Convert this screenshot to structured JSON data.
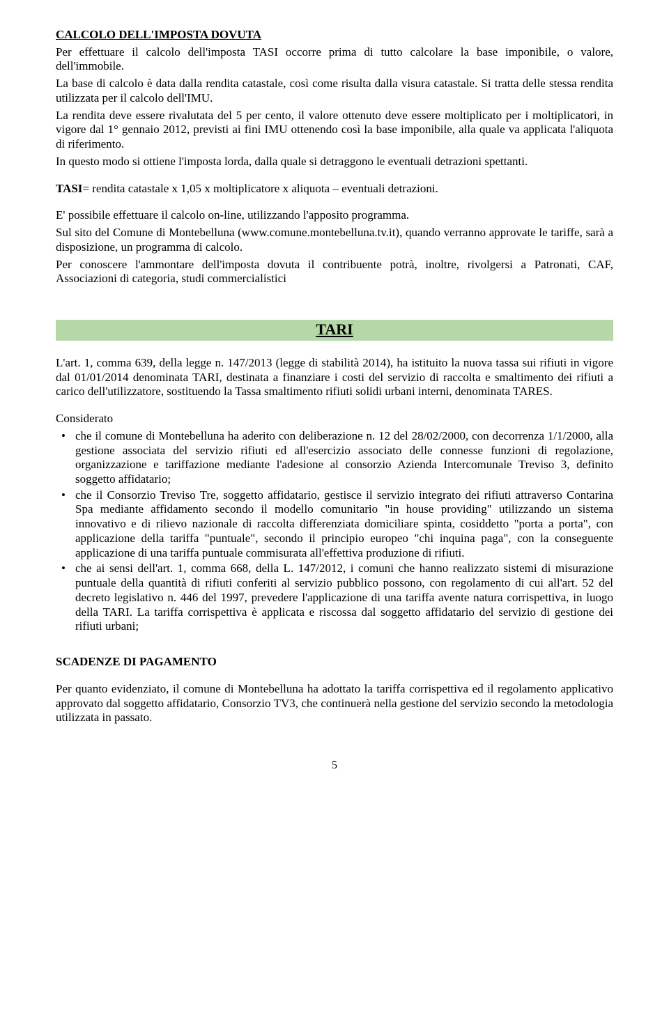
{
  "colors": {
    "text": "#000000",
    "background": "#ffffff",
    "tari_bar_bg": "#b6d7a8"
  },
  "typography": {
    "body_font_family": "Times New Roman",
    "body_font_size_pt": 12,
    "heading_tari_font_size_pt": 16,
    "line_height": 1.22
  },
  "calcolo": {
    "title": "CALCOLO DELL'IMPOSTA DOVUTA",
    "p1": "Per effettuare il calcolo dell'imposta TASI occorre prima di tutto calcolare la base imponibile, o valore, dell'immobile.",
    "p2": "La base di calcolo è data dalla rendita catastale, così come risulta dalla visura catastale. Si tratta delle stessa rendita utilizzata per il calcolo dell'IMU.",
    "p3": "La rendita deve essere rivalutata del 5 per cento, il valore ottenuto deve essere moltiplicato per i moltiplicatori, in vigore dal 1° gennaio 2012, previsti ai fini IMU ottenendo così la base imponibile, alla quale va applicata l'aliquota di riferimento.",
    "p4": "In questo modo si ottiene l'imposta lorda, dalla quale si detraggono le eventuali detrazioni spettanti.",
    "formula_label": "TASI",
    "formula_rest": "= rendita catastale x 1,05 x moltiplicatore x aliquota – eventuali detrazioni.",
    "p5": "E' possibile effettuare il calcolo on-line, utilizzando l'apposito programma.",
    "p6": "Sul sito del Comune di Montebelluna (www.comune.montebelluna.tv.it), quando verranno approvate le tariffe, sarà a disposizione, un programma di calcolo.",
    "p7": "Per conoscere l'ammontare dell'imposta dovuta il contribuente potrà, inoltre, rivolgersi a Patronati, CAF, Associazioni di categoria, studi commercialistici"
  },
  "tari": {
    "heading": "TARI",
    "intro": "L'art. 1, comma 639,  della legge n. 147/2013 (legge di stabilità 2014), ha istituito la nuova tassa sui rifiuti in vigore dal 01/01/2014 denominata TARI, destinata a finanziare i costi del servizio di raccolta e smaltimento dei rifiuti a carico dell'utilizzatore, sostituendo la Tassa smaltimento rifiuti solidi urbani interni, denominata TARES.",
    "considerato_label": "Considerato",
    "bullets": [
      "che il comune di Montebelluna ha aderito con deliberazione n. 12 del 28/02/2000, con decorrenza 1/1/2000, alla gestione associata del servizio rifiuti ed all'esercizio associato delle connesse funzioni di regolazione, organizzazione e tariffazione mediante l'adesione al consorzio Azienda Intercomunale Treviso 3, definito soggetto affidatario;",
      "che il Consorzio Treviso Tre, soggetto affidatario, gestisce il servizio integrato dei rifiuti attraverso Contarina Spa mediante affidamento secondo il modello comunitario \"in house providing\" utilizzando un sistema innovativo e di rilievo nazionale di raccolta differenziata domiciliare spinta, cosiddetto \"porta a porta\", con applicazione della tariffa \"puntuale\", secondo il principio europeo \"chi inquina paga\", con la conseguente applicazione di una tariffa puntuale commisurata all'effettiva produzione di rifiuti.",
      "che ai sensi dell'art. 1, comma 668, della L. 147/2012, i comuni che hanno realizzato sistemi di misurazione puntuale della quantità di rifiuti conferiti al servizio pubblico possono, con regolamento di cui all'art. 52 del decreto legislativo n. 446 del 1997, prevedere l'applicazione di una tariffa avente natura corrispettiva, in luogo della TARI. La tariffa corrispettiva è applicata e riscossa dal soggetto affidatario del servizio di gestione dei rifiuti urbani;"
    ],
    "scadenze_title": "SCADENZE DI PAGAMENTO",
    "scadenze_body": "Per quanto evidenziato, il comune di Montebelluna ha adottato la tariffa corrispettiva ed il regolamento applicativo approvato dal soggetto affidatario, Consorzio TV3, che continuerà nella gestione del servizio secondo la metodologia utilizzata in passato."
  },
  "page_number": "5"
}
